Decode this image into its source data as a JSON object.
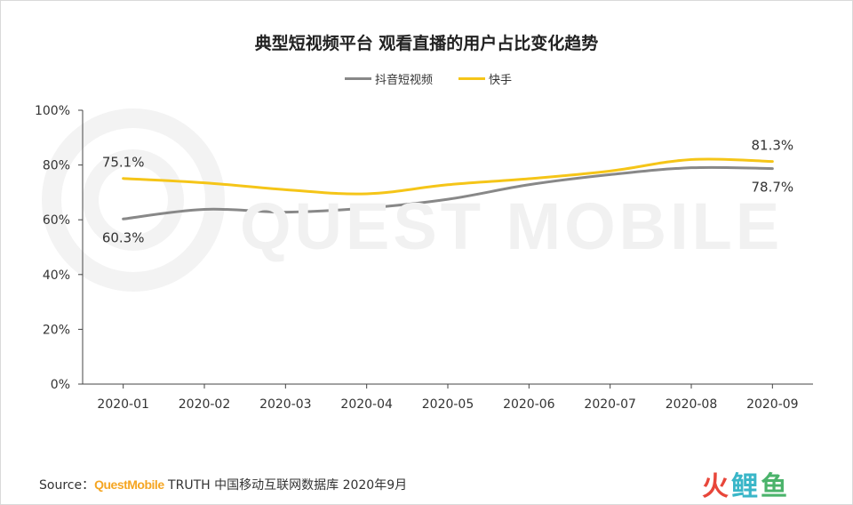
{
  "chart_data": {
    "type": "line",
    "title": "典型短视频平台 观看直播的用户占比变化趋势",
    "categories": [
      "2020-01",
      "2020-02",
      "2020-03",
      "2020-04",
      "2020-05",
      "2020-06",
      "2020-07",
      "2020-08",
      "2020-09"
    ],
    "series": [
      {
        "name": "抖音短视频",
        "color": "#888888",
        "values": [
          60.3,
          63.8,
          62.8,
          64.3,
          67.5,
          72.8,
          76.5,
          79.0,
          78.7
        ],
        "labels": [
          {
            "index": 0,
            "text": "60.3%",
            "position": "below"
          },
          {
            "index": 8,
            "text": "78.7%",
            "position": "below"
          }
        ]
      },
      {
        "name": "快手",
        "color": "#f5c518",
        "values": [
          75.1,
          73.5,
          71.0,
          69.5,
          72.8,
          75.0,
          77.8,
          82.0,
          81.3
        ],
        "labels": [
          {
            "index": 0,
            "text": "75.1%",
            "position": "above"
          },
          {
            "index": 8,
            "text": "81.3%",
            "position": "above"
          }
        ]
      }
    ],
    "y_ticks": [
      "0%",
      "20%",
      "40%",
      "60%",
      "80%",
      "100%"
    ],
    "ylim": [
      0,
      100
    ],
    "grid": false,
    "legend_position": "top-center"
  },
  "watermark": "QUEST MOBILE",
  "source": {
    "prefix": "Source：",
    "brand": "QuestMobile",
    "suffix": " TRUTH 中国移动互联网数据库 2020年9月"
  },
  "logo": {
    "part1": "火",
    "part2": "鲤",
    "part3": "鱼"
  }
}
